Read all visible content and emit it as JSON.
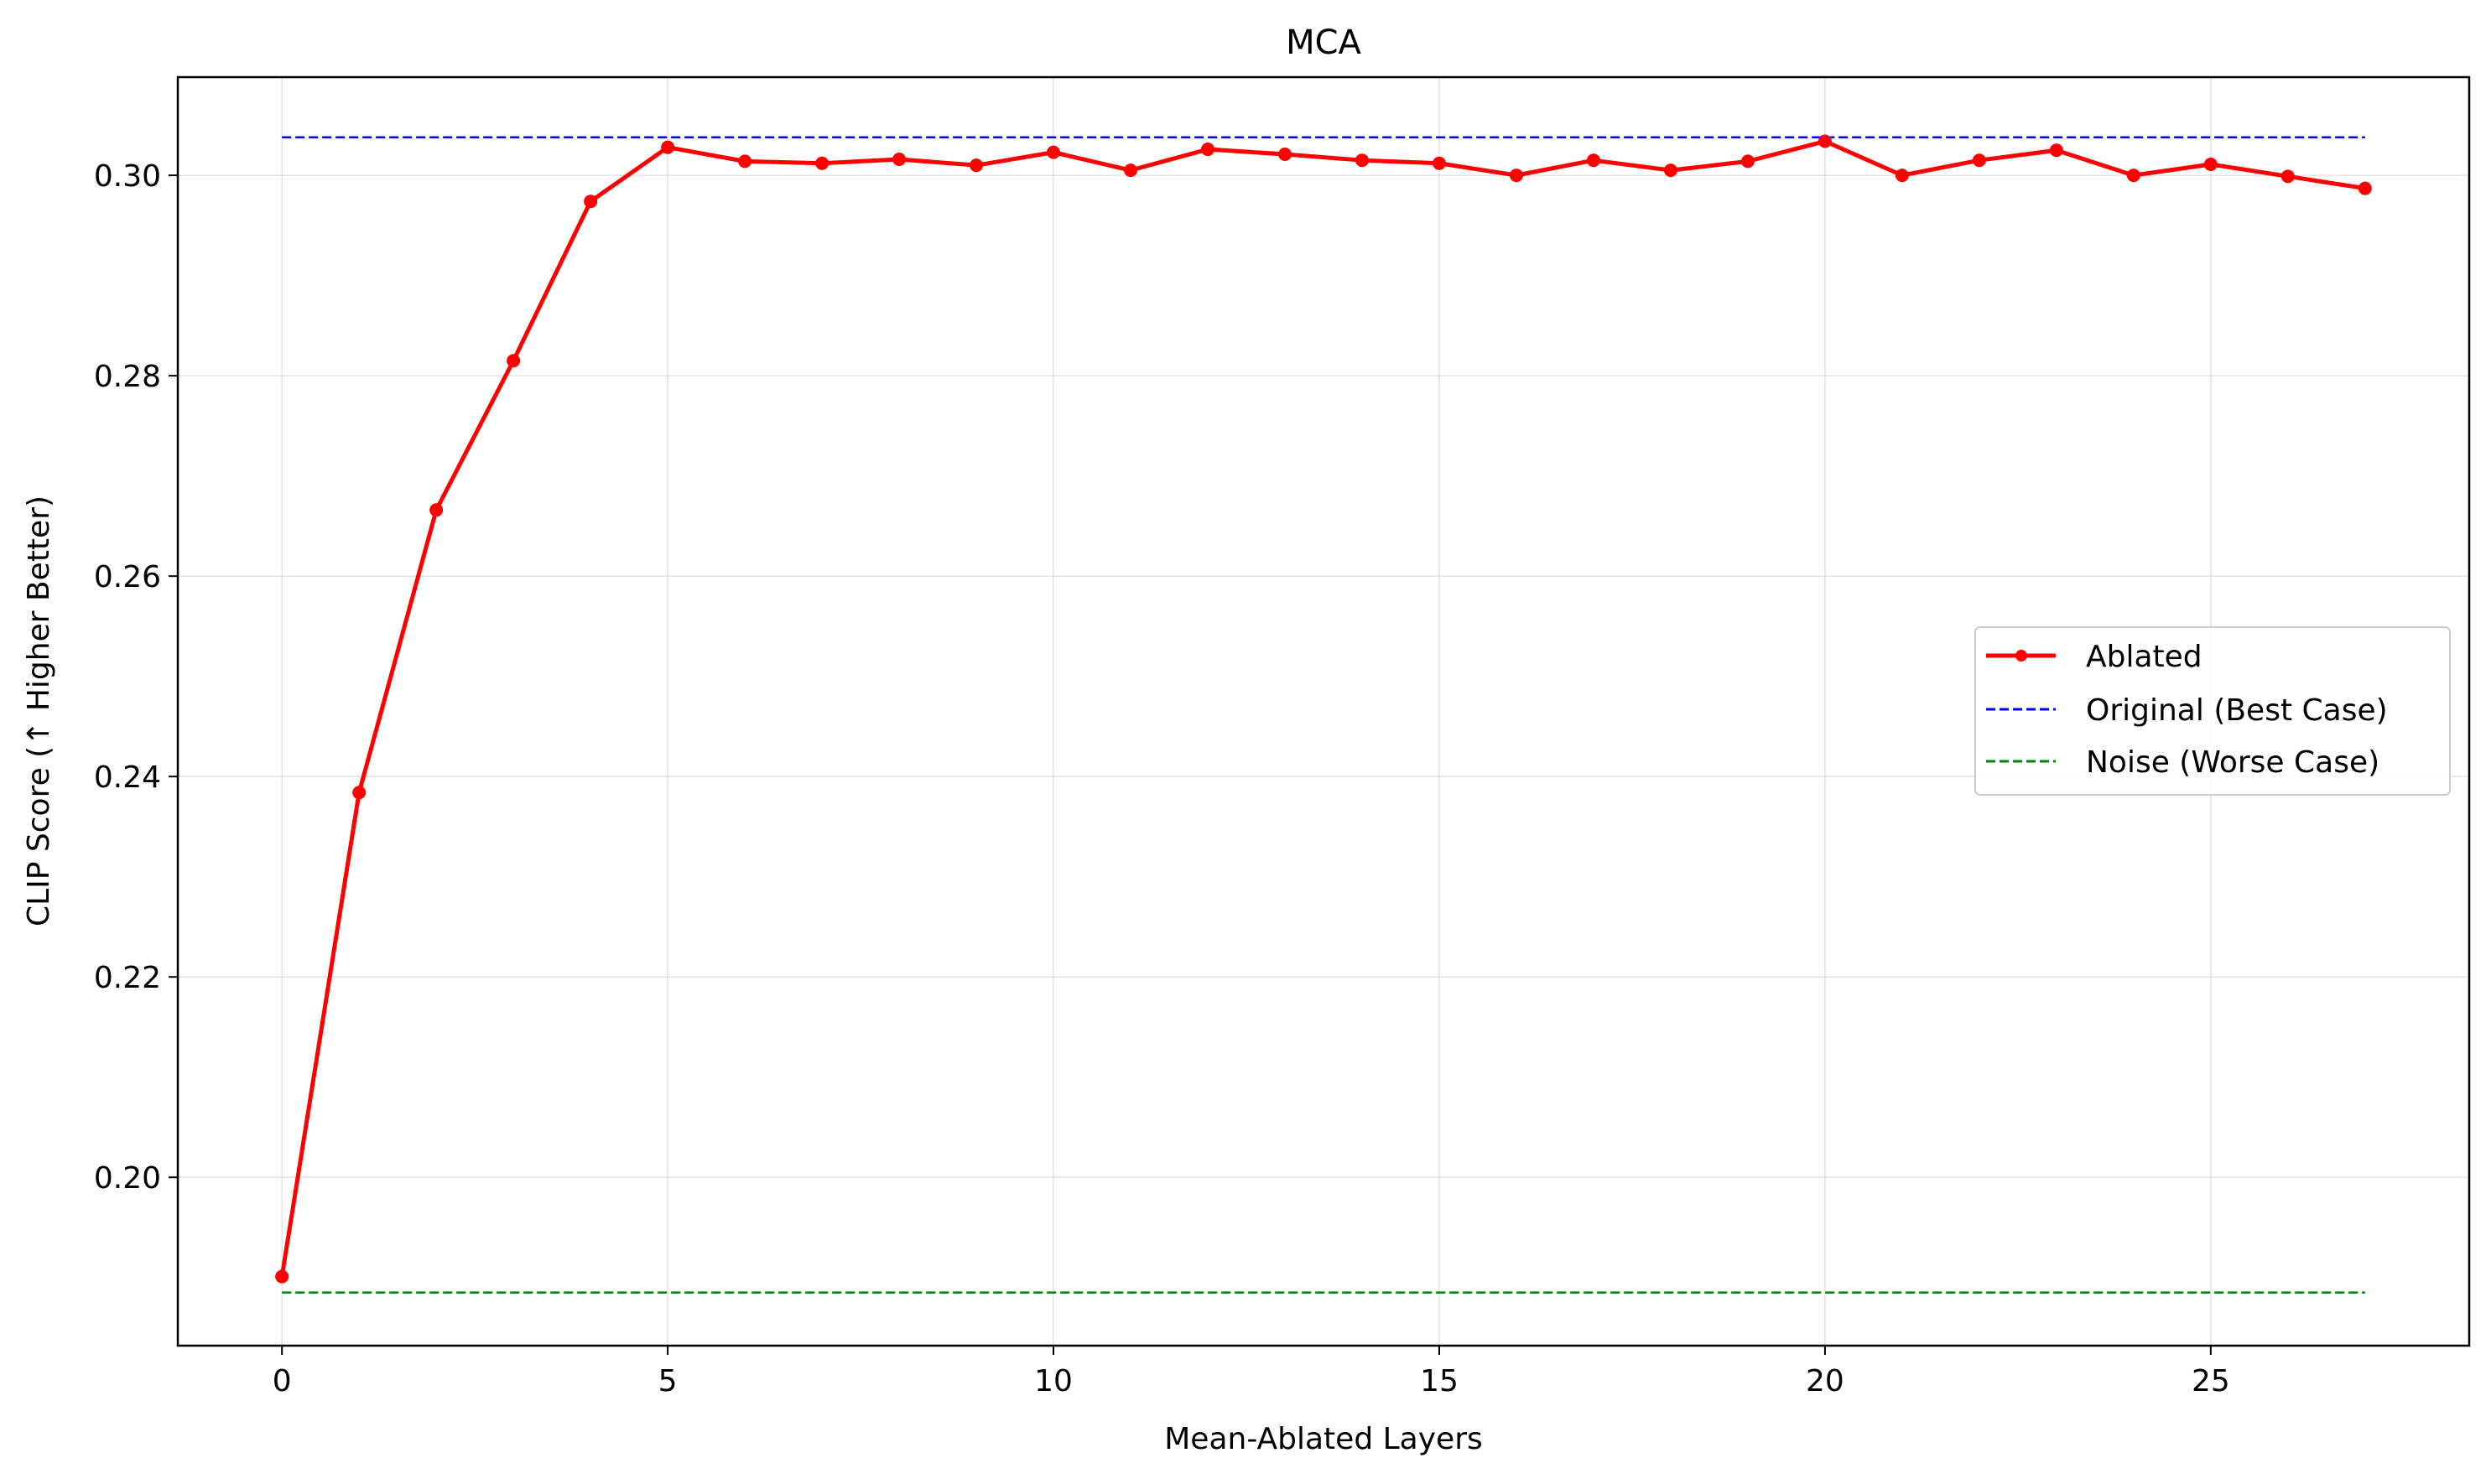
{
  "chart_data": {
    "type": "line",
    "title": "MCA",
    "xlabel": "Mean-Ablated Layers",
    "ylabel": "CLIP Score (↑ Higher Better)",
    "xlim": [
      -1.35,
      28.35
    ],
    "ylim": [
      0.1832,
      0.3098
    ],
    "x_ticks": [
      0,
      5,
      10,
      15,
      20,
      25
    ],
    "x_tick_labels": [
      "0",
      "5",
      "10",
      "15",
      "20",
      "25"
    ],
    "y_ticks": [
      0.2,
      0.22,
      0.24,
      0.26,
      0.28,
      0.3
    ],
    "y_tick_labels": [
      "0.20",
      "0.22",
      "0.24",
      "0.26",
      "0.28",
      "0.30"
    ],
    "grid": true,
    "legend_position": "center-right",
    "series": [
      {
        "name": "Ablated",
        "style": "solid-with-markers",
        "color": "#ff0000",
        "x": [
          0,
          1,
          2,
          3,
          4,
          5,
          6,
          7,
          8,
          9,
          10,
          11,
          12,
          13,
          14,
          15,
          16,
          17,
          18,
          19,
          20,
          21,
          22,
          23,
          24,
          25,
          26,
          27
        ],
        "values": [
          0.1901,
          0.2384,
          0.2666,
          0.2815,
          0.2974,
          0.3028,
          0.3014,
          0.3012,
          0.3016,
          0.301,
          0.3023,
          0.3005,
          0.3026,
          0.3021,
          0.3015,
          0.3012,
          0.3,
          0.3015,
          0.3005,
          0.3014,
          0.3034,
          0.3,
          0.3015,
          0.3025,
          0.3,
          0.3011,
          0.2999,
          0.2987
        ]
      },
      {
        "name": "Original (Best Case)",
        "style": "dashed",
        "color": "#0000ff",
        "x": [
          0,
          27
        ],
        "values": [
          0.3038,
          0.3038
        ]
      },
      {
        "name": "Noise (Worse Case)",
        "style": "dashed",
        "color": "#008000",
        "x": [
          0,
          27
        ],
        "values": [
          0.1885,
          0.1885
        ]
      }
    ]
  }
}
